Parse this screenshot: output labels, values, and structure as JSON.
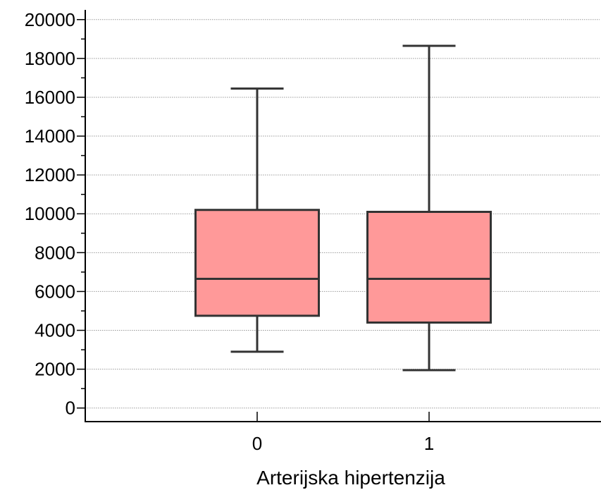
{
  "chart_data": {
    "type": "box",
    "title": "",
    "xlabel": "Arterijska hipertenzija",
    "ylabel": "",
    "categories": [
      "0",
      "1"
    ],
    "boxes": [
      {
        "category": "0",
        "min": 2900,
        "q1": 4750,
        "median": 6650,
        "q3": 10200,
        "max": 16450
      },
      {
        "category": "1",
        "min": 1950,
        "q1": 4400,
        "median": 6650,
        "q3": 10100,
        "max": 18650
      }
    ],
    "ylim": [
      -700,
      20500
    ],
    "yticks": [
      0,
      2000,
      4000,
      6000,
      8000,
      10000,
      12000,
      14000,
      16000,
      18000,
      20000
    ],
    "yticklabels": [
      "0",
      "2000",
      "4000",
      "6000",
      "8000",
      "10000",
      "12000",
      "14000",
      "16000",
      "18000",
      "20000"
    ],
    "grid": true,
    "colors": {
      "box_fill": "#ff9999",
      "box_edge": "#333333",
      "grid": "#9a9a9a",
      "axis": "#000000"
    }
  }
}
